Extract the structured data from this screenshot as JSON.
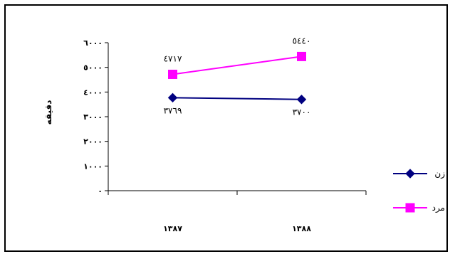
{
  "chart_data": {
    "type": "line",
    "categories": [
      "١٣٨٧",
      "١٣٨٨"
    ],
    "ylabel": "دقیقه",
    "xlabel": "",
    "title": "",
    "ylim": [
      0,
      6000
    ],
    "yticks": [
      0,
      1000,
      2000,
      3000,
      4000,
      5000,
      6000
    ],
    "ytick_labels": [
      "٠",
      "١٠٠٠",
      "٢٠٠٠",
      "٣٠٠٠",
      "٤٠٠٠",
      "٥٠٠٠",
      "٦٠٠٠"
    ],
    "legend_position": "right",
    "series": [
      {
        "name": "زن",
        "values": [
          3769,
          3700
        ],
        "value_labels": [
          "٣٧٦٩",
          "٣٧٠٠"
        ],
        "color": "#000080",
        "marker": "diamond"
      },
      {
        "name": "مرد",
        "values": [
          4717,
          5440
        ],
        "value_labels": [
          "٤٧١٧",
          "٥٤٤٠"
        ],
        "color": "#ff00ff",
        "marker": "square"
      }
    ]
  }
}
